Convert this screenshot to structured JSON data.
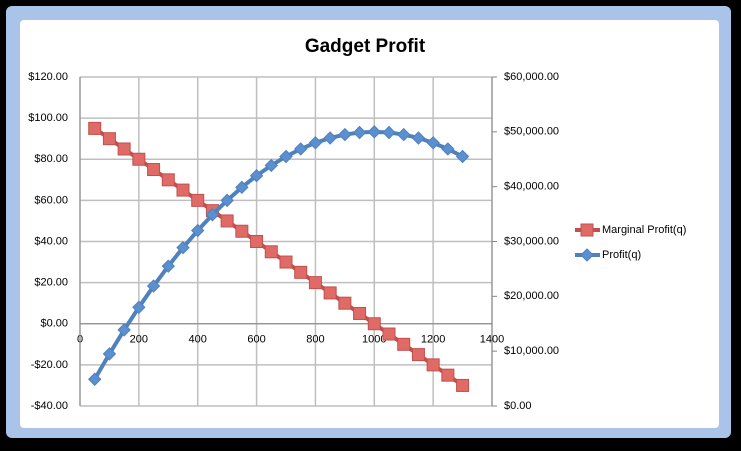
{
  "chart_data": {
    "type": "line",
    "title": "Gadget Profit",
    "x": [
      50,
      100,
      150,
      200,
      250,
      300,
      350,
      400,
      450,
      500,
      550,
      600,
      650,
      700,
      750,
      800,
      850,
      900,
      950,
      1000,
      1050,
      1100,
      1150,
      1200,
      1250,
      1300
    ],
    "series": [
      {
        "name": "Marginal Profit(q)",
        "color": "#c0504d",
        "marker": "square",
        "values": [
          95,
          90,
          85,
          80,
          75,
          70,
          65,
          60,
          55,
          50,
          45,
          40,
          35,
          30,
          25,
          20,
          15,
          10,
          5,
          0,
          -5,
          -10,
          -15,
          -20,
          -25,
          -30
        ]
      },
      {
        "name": "Profit(q)",
        "color": "#4f81bd",
        "marker": "diamond",
        "axis": "y2",
        "values": [
          4875,
          9500,
          13875,
          18000,
          21875,
          25500,
          28875,
          32000,
          34875,
          37500,
          39875,
          42000,
          43875,
          45500,
          46875,
          48000,
          48875,
          49500,
          49875,
          50000,
          49875,
          49500,
          48875,
          48000,
          46875,
          45500
        ]
      }
    ],
    "xlim": [
      0,
      1400
    ],
    "xticks": [
      0,
      200,
      400,
      600,
      800,
      1000,
      1200,
      1400
    ],
    "ylim": [
      -40,
      120
    ],
    "yticks": [
      {
        "value": -40,
        "label": "-$40.00"
      },
      {
        "value": -20,
        "label": "-$20.00"
      },
      {
        "value": 0,
        "label": "$0.00"
      },
      {
        "value": 20,
        "label": "$20.00"
      },
      {
        "value": 40,
        "label": "$40.00"
      },
      {
        "value": 60,
        "label": "$60.00"
      },
      {
        "value": 80,
        "label": "$80.00"
      },
      {
        "value": 100,
        "label": "$100.00"
      },
      {
        "value": 120,
        "label": "$120.00"
      }
    ],
    "y2lim": [
      0,
      60000
    ],
    "y2ticks": [
      {
        "value": 0,
        "label": "$0.00"
      },
      {
        "value": 10000,
        "label": "$10,000.00"
      },
      {
        "value": 20000,
        "label": "$20,000.00"
      },
      {
        "value": 30000,
        "label": "$30,000.00"
      },
      {
        "value": 40000,
        "label": "$40,000.00"
      },
      {
        "value": 50000,
        "label": "$50,000.00"
      },
      {
        "value": 60000,
        "label": "$60,000.00"
      }
    ],
    "grid": true,
    "legend": "right"
  }
}
